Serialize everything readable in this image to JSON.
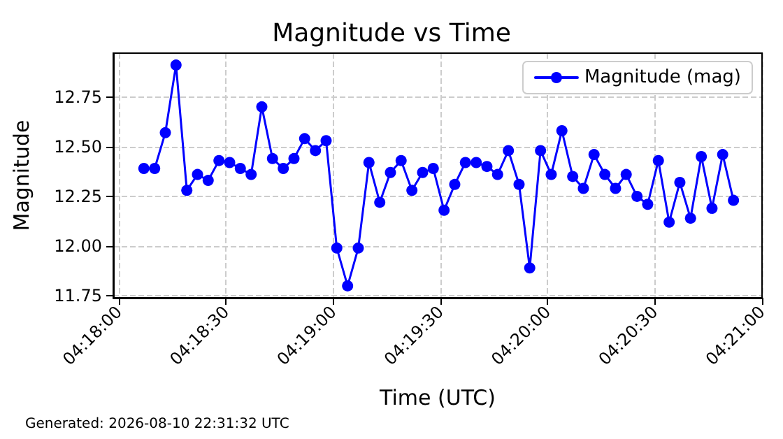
{
  "chart_data": {
    "type": "line",
    "title": "Magnitude vs Time",
    "xlabel": "Time (UTC)",
    "ylabel": "Magnitude",
    "annotations": [
      "Generated: 2026-08-10 22:31:32 UTC"
    ],
    "x": [
      4.30194,
      4.30278,
      4.30361,
      4.30444,
      4.30528,
      4.30611,
      4.30694,
      4.30778,
      4.30861,
      4.30944,
      4.31028,
      4.31111,
      4.31194,
      4.31278,
      4.31361,
      4.31444,
      4.31528,
      4.31611,
      4.31694,
      4.31778,
      4.31861,
      4.31944,
      4.32028,
      4.32111,
      4.32194,
      4.32278,
      4.32361,
      4.32444,
      4.32528,
      4.32611,
      4.32694,
      4.32778,
      4.32861,
      4.32944,
      4.33028,
      4.33111,
      4.33194,
      4.33278,
      4.33361,
      4.33444,
      4.33528,
      4.33611,
      4.33694,
      4.33778,
      4.33861,
      4.33944,
      4.34028,
      4.34111,
      4.34194,
      4.34278,
      4.34361,
      4.34444,
      4.34528,
      4.34611,
      4.34694,
      4.34778
    ],
    "series": [
      {
        "name": "Magnitude (mag)",
        "color": "#0000ff",
        "values": [
          12.39,
          12.39,
          12.57,
          12.91,
          12.28,
          12.36,
          12.33,
          12.43,
          12.42,
          12.39,
          12.36,
          12.7,
          12.44,
          12.39,
          12.44,
          12.54,
          12.48,
          12.53,
          11.99,
          11.8,
          11.99,
          12.42,
          12.22,
          12.37,
          12.43,
          12.28,
          12.37,
          12.39,
          12.18,
          12.31,
          12.42,
          12.42,
          12.4,
          12.36,
          12.48,
          12.31,
          11.89,
          12.48,
          12.36,
          12.58,
          12.35,
          12.29,
          12.46,
          12.36,
          12.29,
          12.36,
          12.25,
          12.21,
          12.43,
          12.12,
          12.32,
          12.14,
          12.45,
          12.19,
          12.46,
          12.23
        ]
      }
    ],
    "xlim": [
      4.29956,
      4.35
    ],
    "xticks": [
      {
        "value": 4.3,
        "label": "04:18:00"
      },
      {
        "value": 4.30833,
        "label": "04:18:30"
      },
      {
        "value": 4.31667,
        "label": "04:19:00"
      },
      {
        "value": 4.325,
        "label": "04:19:30"
      },
      {
        "value": 4.33333,
        "label": "04:20:00"
      },
      {
        "value": 4.34167,
        "label": "04:20:30"
      },
      {
        "value": 4.35,
        "label": "04:21:00"
      }
    ],
    "ylim": [
      11.74,
      12.97
    ],
    "yticks": [
      11.75,
      {
        "value": 12,
        "label": "12.00"
      },
      12.25,
      {
        "value": 12.5,
        "label": "12.50"
      },
      12.75
    ],
    "grid": true,
    "legend": "top right",
    "marker": "circle",
    "line_style": "solid"
  }
}
